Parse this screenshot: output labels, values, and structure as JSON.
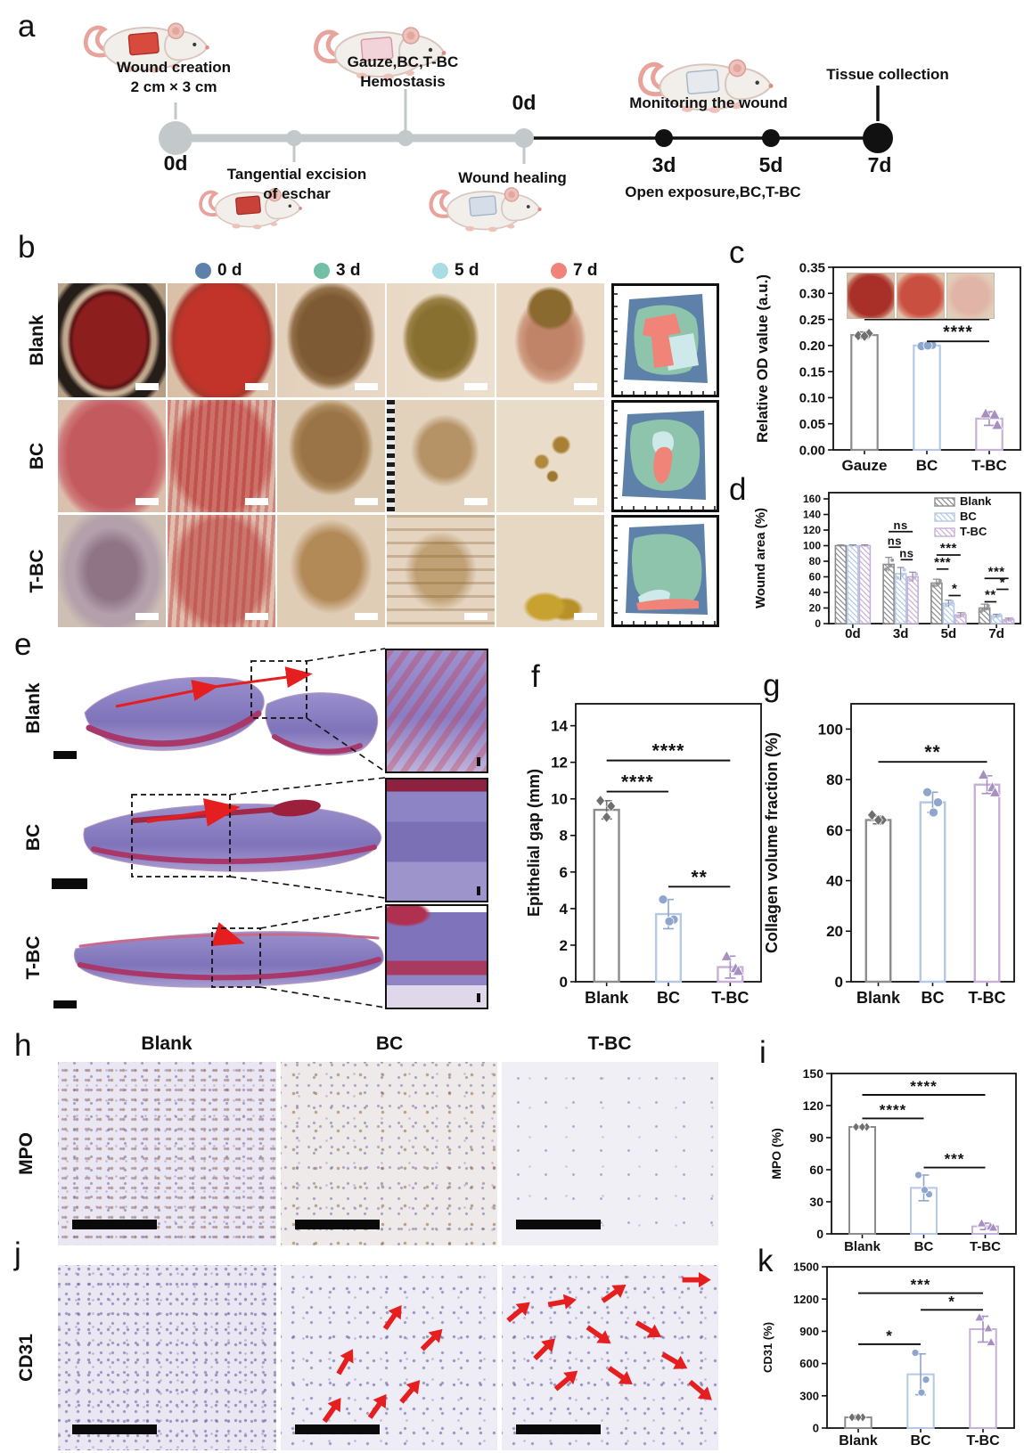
{
  "panels": {
    "a": {
      "label": "a",
      "wound_creation_1": "Wound creation",
      "wound_creation_2": "2 cm × 3 cm",
      "d0_left": "0d",
      "tangential_1": "Tangential excision",
      "tangential_2": "of eschar",
      "hemostasis_1": "Gauze,BC,T-BC",
      "hemostasis_2": "Hemostasis",
      "d0_mid": "0d",
      "wound_healing": "Wound healing",
      "monitoring": "Monitoring the wound",
      "open_exposure": "Open exposure,BC,T-BC",
      "d3": "3d",
      "d5": "5d",
      "d7": "7d",
      "tissue_collection": "Tissue collection"
    },
    "b": {
      "label": "b",
      "legend": [
        {
          "label": "0 d",
          "color": "#5d81a8"
        },
        {
          "label": "3 d",
          "color": "#71bfa6"
        },
        {
          "label": "5 d",
          "color": "#aadde2"
        },
        {
          "label": "7 d",
          "color": "#f0837a"
        }
      ],
      "rows": [
        "Blank",
        "BC",
        "T-BC"
      ]
    },
    "c": {
      "label": "c"
    },
    "d": {
      "label": "d"
    },
    "e": {
      "label": "e",
      "rows": [
        "Blank",
        "BC",
        "T-BC"
      ]
    },
    "f": {
      "label": "f"
    },
    "g": {
      "label": "g"
    },
    "h": {
      "label": "h",
      "columns": [
        "Blank",
        "BC",
        "T-BC"
      ],
      "marker": "MPO"
    },
    "i": {
      "label": "i"
    },
    "j": {
      "label": "j",
      "marker": "CD31",
      "red_arrow_counts": {
        "Blank": 0,
        "BC": 6,
        "T-BC": 11
      }
    },
    "k": {
      "label": "k"
    }
  },
  "style": {
    "group_colors": {
      "Blank": "#8c8c8c",
      "BC": "#b3c9e6",
      "T-BC": "#c7b0d7"
    },
    "marker_colors": {
      "Blank": "#6f6f6f",
      "BC": "#8ea6cb",
      "T-BC": "#a78fc2"
    },
    "arrow_red": "#e51f1f",
    "timeline_gray": "#c3c9ca",
    "timeline_black": "#111111",
    "trace_map_colors": {
      "0d": "#5d81a8",
      "3d": "#8ec4ab",
      "5d": "#cde9e9",
      "7d": "#f08478"
    }
  },
  "chart_data": [
    {
      "panel": "c",
      "type": "bar",
      "title": "",
      "xlabel": "",
      "ylabel": "Relative OD value (a.u.)",
      "categories": [
        "Gauze",
        "BC",
        "T-BC"
      ],
      "values": [
        0.22,
        0.2,
        0.06
      ],
      "errors": [
        0.006,
        0.006,
        0.013
      ],
      "points": [
        [
          0.219,
          0.223,
          0.218
        ],
        [
          0.199,
          0.201,
          0.2
        ],
        [
          0.07,
          0.068,
          0.048
        ]
      ],
      "bar_colors": [
        "#8c8c8c",
        "#b3c9e6",
        "#c7b0d7"
      ],
      "marker_colors": [
        "#6f6f6f",
        "#8ea6cb",
        "#a78fc2"
      ],
      "ylim": [
        0,
        0.35
      ],
      "ytick_step": 0.05,
      "ymax_tick": 0.35,
      "decimals": 2,
      "grid": false,
      "significance": [
        {
          "i": 0,
          "j": 2,
          "y": 0.25,
          "label": "****"
        },
        {
          "i": 1,
          "j": 2,
          "y": 0.208,
          "label": "****"
        }
      ]
    },
    {
      "panel": "d",
      "type": "grouped-bar",
      "title": "",
      "xlabel": "",
      "ylabel": "Wound area (%)",
      "categories": [
        "0d",
        "3d",
        "5d",
        "7d"
      ],
      "series": [
        {
          "name": "Blank",
          "values": [
            100,
            76,
            52,
            20
          ],
          "errors": [
            1,
            9,
            5,
            5
          ]
        },
        {
          "name": "BC",
          "values": [
            100,
            64,
            26,
            10
          ],
          "errors": [
            1,
            8,
            4,
            2
          ]
        },
        {
          "name": "T-BC",
          "values": [
            100,
            60,
            11,
            5
          ],
          "errors": [
            1,
            6,
            3,
            2
          ]
        }
      ],
      "series_colors": [
        "#8c8c8c",
        "#b3c9e6",
        "#c7b0d7"
      ],
      "ylim": [
        0,
        168
      ],
      "ytick_step": 20,
      "ymax_tick": 160,
      "decimals": 0,
      "grid": false,
      "legend_position": "top-right",
      "significance": [
        {
          "cat": 1,
          "i": 0,
          "j": 2,
          "y": 118,
          "label": "ns"
        },
        {
          "cat": 1,
          "i": 0,
          "j": 1,
          "y": 98,
          "label": "ns"
        },
        {
          "cat": 1,
          "i": 1,
          "j": 2,
          "y": 82,
          "label": "ns"
        },
        {
          "cat": 2,
          "i": 0,
          "j": 2,
          "y": 88,
          "label": "***"
        },
        {
          "cat": 2,
          "i": 0,
          "j": 1,
          "y": 70,
          "label": "***"
        },
        {
          "cat": 2,
          "i": 1,
          "j": 2,
          "y": 36,
          "label": "*"
        },
        {
          "cat": 3,
          "i": 0,
          "j": 2,
          "y": 58,
          "label": "***"
        },
        {
          "cat": 3,
          "i": 1,
          "j": 2,
          "y": 44,
          "label": "*"
        },
        {
          "cat": 3,
          "i": 0,
          "j": 1,
          "y": 28,
          "label": "**"
        }
      ]
    },
    {
      "panel": "f",
      "type": "bar",
      "title": "",
      "xlabel": "",
      "ylabel": "Epithelial gap (mm)",
      "categories": [
        "Blank",
        "BC",
        "T-BC"
      ],
      "values": [
        9.4,
        3.7,
        0.8
      ],
      "errors": [
        0.5,
        0.8,
        0.6
      ],
      "points": [
        [
          9.9,
          9.6,
          9.0
        ],
        [
          4.5,
          3.4,
          3.3
        ],
        [
          1.4,
          0.75,
          0.6
        ]
      ],
      "bar_colors": [
        "#8c8c8c",
        "#b3c9e6",
        "#c7b0d7"
      ],
      "marker_colors": [
        "#6f6f6f",
        "#8ea6cb",
        "#a78fc2"
      ],
      "ylim": [
        0,
        15.2
      ],
      "ytick_step": 2,
      "ymax_tick": 14,
      "decimals": 0,
      "grid": false,
      "significance": [
        {
          "i": 0,
          "j": 2,
          "y": 12.1,
          "label": "****"
        },
        {
          "i": 0,
          "j": 1,
          "y": 10.4,
          "label": "****"
        },
        {
          "i": 1,
          "j": 2,
          "y": 5.2,
          "label": "**"
        }
      ]
    },
    {
      "panel": "g",
      "type": "bar",
      "title": "",
      "xlabel": "",
      "ylabel": "Collagen volume fraction (%)",
      "categories": [
        "Blank",
        "BC",
        "T-BC"
      ],
      "values": [
        64,
        71,
        78
      ],
      "errors": [
        1.5,
        4,
        3.5
      ],
      "points": [
        [
          66,
          64,
          64
        ],
        [
          75,
          71,
          67
        ],
        [
          82,
          77,
          75
        ]
      ],
      "bar_colors": [
        "#8c8c8c",
        "#b3c9e6",
        "#c7b0d7"
      ],
      "marker_colors": [
        "#6f6f6f",
        "#8ea6cb",
        "#a78fc2"
      ],
      "ylim": [
        0,
        110
      ],
      "ytick_step": 20,
      "ymax_tick": 100,
      "decimals": 0,
      "grid": false,
      "significance": [
        {
          "i": 0,
          "j": 2,
          "y": 87,
          "label": "**"
        }
      ]
    },
    {
      "panel": "i",
      "type": "bar",
      "title": "",
      "xlabel": "",
      "ylabel": "MPO (%)",
      "categories": [
        "Blank",
        "BC",
        "T-BC"
      ],
      "values": [
        100,
        43,
        7
      ],
      "errors": [
        1,
        12,
        3
      ],
      "points": [
        [
          100,
          100,
          100
        ],
        [
          55,
          37,
          41
        ],
        [
          10,
          7,
          6
        ]
      ],
      "bar_colors": [
        "#8c8c8c",
        "#b3c9e6",
        "#c7b0d7"
      ],
      "marker_colors": [
        "#6f6f6f",
        "#8ea6cb",
        "#a78fc2"
      ],
      "ylim": [
        0,
        150
      ],
      "ytick_step": 30,
      "ymax_tick": 150,
      "decimals": 0,
      "grid": false,
      "significance": [
        {
          "i": 0,
          "j": 2,
          "y": 130,
          "label": "****"
        },
        {
          "i": 0,
          "j": 1,
          "y": 108,
          "label": "****"
        },
        {
          "i": 1,
          "j": 2,
          "y": 62,
          "label": "***"
        }
      ]
    },
    {
      "panel": "k",
      "type": "bar",
      "title": "",
      "xlabel": "",
      "ylabel": "CD31 (%)",
      "categories": [
        "Blank",
        "BC",
        "T-BC"
      ],
      "values": [
        100,
        500,
        920
      ],
      "errors": [
        15,
        190,
        120
      ],
      "points": [
        [
          100,
          100,
          100
        ],
        [
          700,
          450,
          330
        ],
        [
          1030,
          930,
          800
        ]
      ],
      "bar_colors": [
        "#8c8c8c",
        "#b3c9e6",
        "#c7b0d7"
      ],
      "marker_colors": [
        "#6f6f6f",
        "#8ea6cb",
        "#a78fc2"
      ],
      "ylim": [
        0,
        1500
      ],
      "ytick_step": 300,
      "ymax_tick": 1500,
      "decimals": 0,
      "grid": false,
      "significance": [
        {
          "i": 0,
          "j": 2,
          "y": 1255,
          "label": "***"
        },
        {
          "i": 1,
          "j": 2,
          "y": 1100,
          "label": "*"
        },
        {
          "i": 0,
          "j": 1,
          "y": 780,
          "label": "*"
        }
      ]
    }
  ]
}
